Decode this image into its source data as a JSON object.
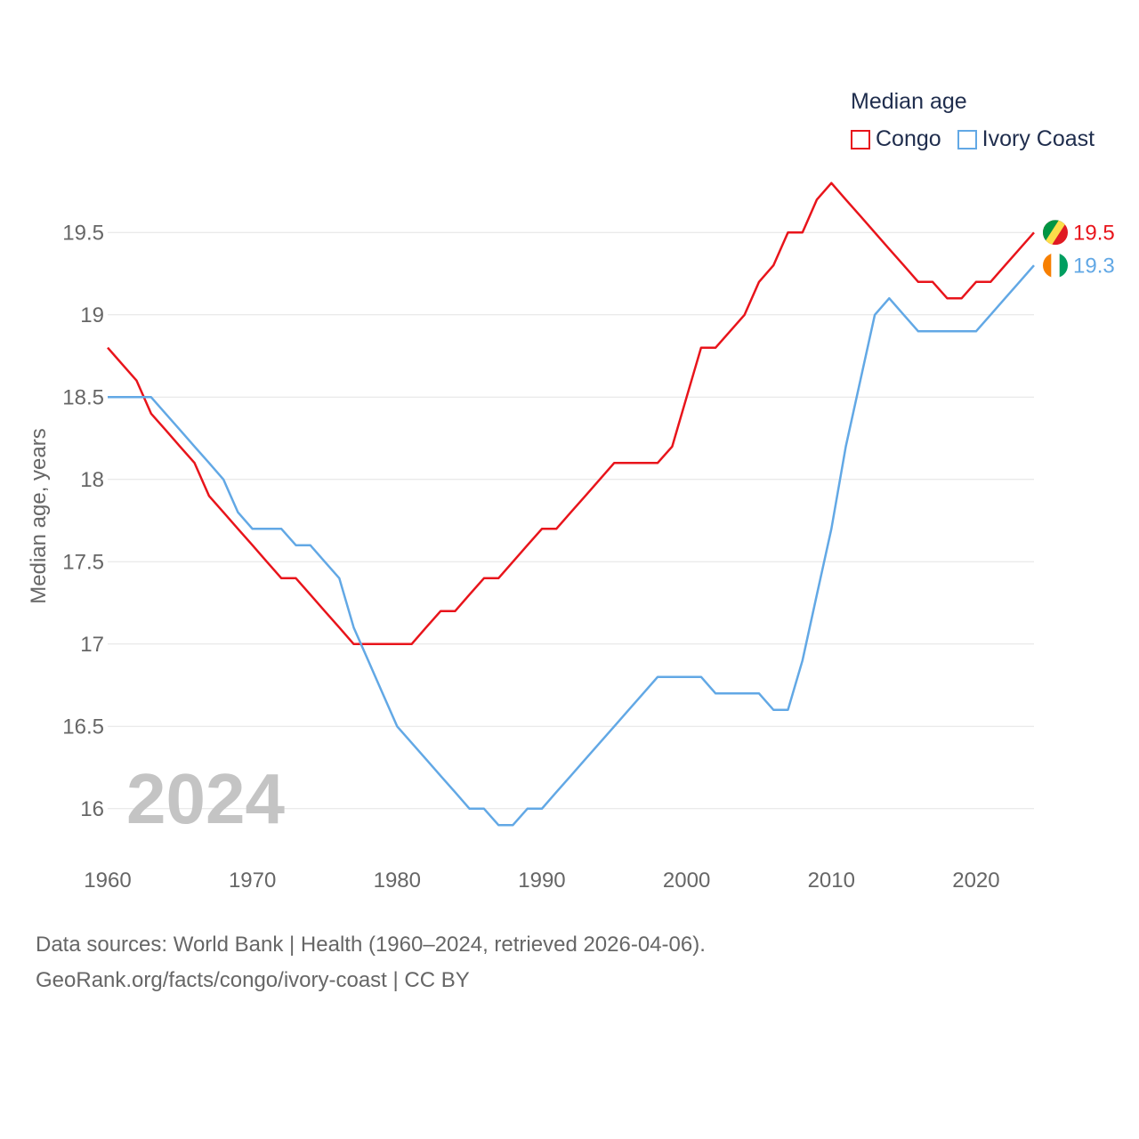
{
  "legend": {
    "title": "Median age",
    "items": [
      {
        "label": "Congo",
        "color": "#e8141b"
      },
      {
        "label": "Ivory Coast",
        "color": "#62a8e5"
      }
    ]
  },
  "watermark_year": "2024",
  "footer": {
    "line1": "Data sources: World Bank | Health (1960–2024, retrieved 2026-04-06).",
    "line2": "GeoRank.org/facts/congo/ivory-coast | CC BY"
  },
  "chart_data": {
    "type": "line",
    "title": "Median age",
    "xlabel": "",
    "ylabel": "Median age, years",
    "xlim": [
      1960,
      2024
    ],
    "ylim": [
      15.75,
      19.75
    ],
    "x_ticks": [
      1960,
      1970,
      1980,
      1990,
      2000,
      2010,
      2020
    ],
    "y_ticks": [
      16,
      16.5,
      17,
      17.5,
      18,
      18.5,
      19,
      19.5
    ],
    "y_tick_labels": [
      "16",
      "16.5",
      "17",
      "17.5",
      "18",
      "18.5",
      "19",
      "19.5"
    ],
    "grid": true,
    "x": [
      1960,
      1961,
      1962,
      1963,
      1964,
      1965,
      1966,
      1967,
      1968,
      1969,
      1970,
      1971,
      1972,
      1973,
      1974,
      1975,
      1976,
      1977,
      1978,
      1979,
      1980,
      1981,
      1982,
      1983,
      1984,
      1985,
      1986,
      1987,
      1988,
      1989,
      1990,
      1991,
      1992,
      1993,
      1994,
      1995,
      1996,
      1997,
      1998,
      1999,
      2000,
      2001,
      2002,
      2003,
      2004,
      2005,
      2006,
      2007,
      2008,
      2009,
      2010,
      2011,
      2012,
      2013,
      2014,
      2015,
      2016,
      2017,
      2018,
      2019,
      2020,
      2021,
      2022,
      2023,
      2024
    ],
    "series": [
      {
        "name": "Congo",
        "color": "#e8141b",
        "end_label": "19.5",
        "flag": "congo-flag-icon",
        "values": [
          18.8,
          18.7,
          18.6,
          18.4,
          18.3,
          18.2,
          18.1,
          17.9,
          17.8,
          17.7,
          17.6,
          17.5,
          17.4,
          17.4,
          17.3,
          17.2,
          17.1,
          17.0,
          17.0,
          17.0,
          17.0,
          17.0,
          17.1,
          17.2,
          17.2,
          17.3,
          17.4,
          17.4,
          17.5,
          17.6,
          17.7,
          17.7,
          17.8,
          17.9,
          18.0,
          18.1,
          18.1,
          18.1,
          18.1,
          18.2,
          18.5,
          18.8,
          18.8,
          18.9,
          19.0,
          19.2,
          19.3,
          19.5,
          19.5,
          19.7,
          19.8,
          19.7,
          19.6,
          19.5,
          19.4,
          19.3,
          19.2,
          19.2,
          19.1,
          19.1,
          19.2,
          19.2,
          19.3,
          19.4,
          19.5
        ]
      },
      {
        "name": "Ivory Coast",
        "color": "#62a8e5",
        "end_label": "19.3",
        "flag": "ivory-coast-flag-icon",
        "values": [
          18.5,
          18.5,
          18.5,
          18.5,
          18.4,
          18.3,
          18.2,
          18.1,
          18.0,
          17.8,
          17.7,
          17.7,
          17.7,
          17.6,
          17.6,
          17.5,
          17.4,
          17.1,
          16.9,
          16.7,
          16.5,
          16.4,
          16.3,
          16.2,
          16.1,
          16.0,
          16.0,
          15.9,
          15.9,
          16.0,
          16.0,
          16.1,
          16.2,
          16.3,
          16.4,
          16.5,
          16.6,
          16.7,
          16.8,
          16.8,
          16.8,
          16.8,
          16.7,
          16.7,
          16.7,
          16.7,
          16.6,
          16.6,
          16.9,
          17.3,
          17.7,
          18.2,
          18.6,
          19.0,
          19.1,
          19.0,
          18.9,
          18.9,
          18.9,
          18.9,
          18.9,
          19.0,
          19.1,
          19.2,
          19.3
        ]
      }
    ]
  }
}
